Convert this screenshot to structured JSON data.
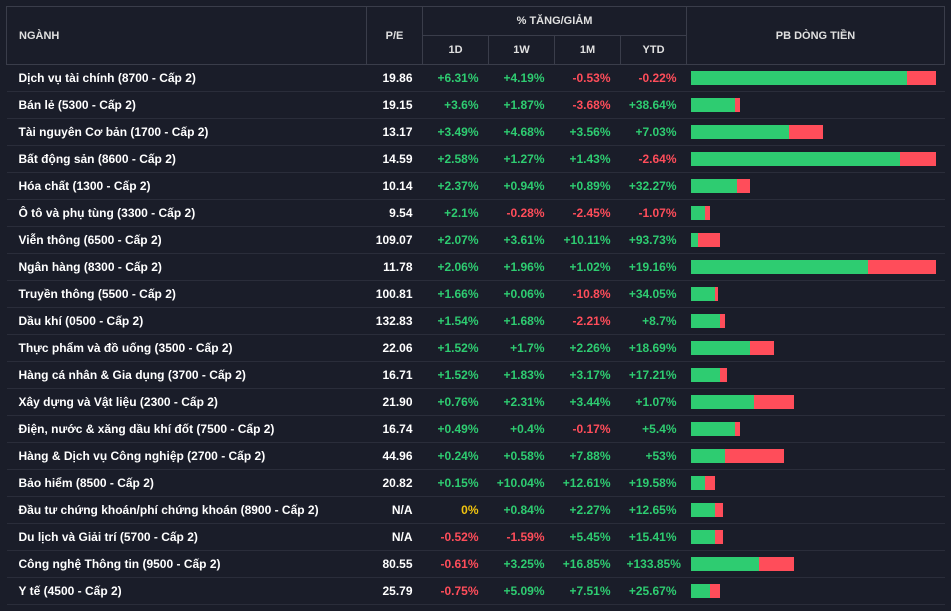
{
  "colors": {
    "positive": "#2ecc71",
    "negative": "#ff4d5a",
    "zero": "#f1c40f",
    "bar_green": "#2ecc71",
    "bar_red": "#ff4d5a",
    "background": "#1a1d29",
    "grid": "#3a3d4a",
    "row_divider": "#2a2d3a",
    "text": "#e0e0e0"
  },
  "headers": {
    "nganh": "NGÀNH",
    "pe": "P/E",
    "pct_group": "% TĂNG/GIẢM",
    "d1": "1D",
    "w1": "1W",
    "m1": "1M",
    "ytd": "YTD",
    "pb": "PB DÒNG TIỀN"
  },
  "rows": [
    {
      "name": "Dịch vụ tài chính (8700 - Cấp 2)",
      "pe": "19.86",
      "d1": "+6.31%",
      "w1": "+4.19%",
      "m1": "-0.53%",
      "ytd": "-0.22%",
      "bar_green": 88,
      "bar_red": 12
    },
    {
      "name": "Bán lẻ (5300 - Cấp 2)",
      "pe": "19.15",
      "d1": "+3.6%",
      "w1": "+1.87%",
      "m1": "-3.68%",
      "ytd": "+38.64%",
      "bar_green": 18,
      "bar_red": 2
    },
    {
      "name": "Tài nguyên Cơ bản (1700 - Cấp 2)",
      "pe": "13.17",
      "d1": "+3.49%",
      "w1": "+4.68%",
      "m1": "+3.56%",
      "ytd": "+7.03%",
      "bar_green": 40,
      "bar_red": 14
    },
    {
      "name": "Bất động sản (8600 - Cấp 2)",
      "pe": "14.59",
      "d1": "+2.58%",
      "w1": "+1.27%",
      "m1": "+1.43%",
      "ytd": "-2.64%",
      "bar_green": 85,
      "bar_red": 15
    },
    {
      "name": "Hóa chất (1300 - Cấp 2)",
      "pe": "10.14",
      "d1": "+2.37%",
      "w1": "+0.94%",
      "m1": "+0.89%",
      "ytd": "+32.27%",
      "bar_green": 19,
      "bar_red": 5
    },
    {
      "name": "Ô tô và phụ tùng (3300 - Cấp 2)",
      "pe": "9.54",
      "d1": "+2.1%",
      "w1": "-0.28%",
      "m1": "-2.45%",
      "ytd": "-1.07%",
      "bar_green": 6,
      "bar_red": 2
    },
    {
      "name": "Viễn thông (6500 - Cấp 2)",
      "pe": "109.07",
      "d1": "+2.07%",
      "w1": "+3.61%",
      "m1": "+10.11%",
      "ytd": "+93.73%",
      "bar_green": 3,
      "bar_red": 9
    },
    {
      "name": "Ngân hàng (8300 - Cấp 2)",
      "pe": "11.78",
      "d1": "+2.06%",
      "w1": "+1.96%",
      "m1": "+1.02%",
      "ytd": "+19.16%",
      "bar_green": 72,
      "bar_red": 28
    },
    {
      "name": "Truyền thông (5500 - Cấp 2)",
      "pe": "100.81",
      "d1": "+1.66%",
      "w1": "+0.06%",
      "m1": "-10.8%",
      "ytd": "+34.05%",
      "bar_green": 10,
      "bar_red": 1
    },
    {
      "name": "Dầu khí (0500 - Cấp 2)",
      "pe": "132.83",
      "d1": "+1.54%",
      "w1": "+1.68%",
      "m1": "-2.21%",
      "ytd": "+8.7%",
      "bar_green": 12,
      "bar_red": 2
    },
    {
      "name": "Thực phẩm và đồ uống (3500 - Cấp 2)",
      "pe": "22.06",
      "d1": "+1.52%",
      "w1": "+1.7%",
      "m1": "+2.26%",
      "ytd": "+18.69%",
      "bar_green": 24,
      "bar_red": 10
    },
    {
      "name": "Hàng cá nhân & Gia dụng (3700 - Cấp 2)",
      "pe": "16.71",
      "d1": "+1.52%",
      "w1": "+1.83%",
      "m1": "+3.17%",
      "ytd": "+17.21%",
      "bar_green": 12,
      "bar_red": 3
    },
    {
      "name": "Xây dựng và Vật liệu (2300 - Cấp 2)",
      "pe": "21.90",
      "d1": "+0.76%",
      "w1": "+2.31%",
      "m1": "+3.44%",
      "ytd": "+1.07%",
      "bar_green": 26,
      "bar_red": 16
    },
    {
      "name": "Điện, nước & xăng dầu khí đốt (7500 - Cấp 2)",
      "pe": "16.74",
      "d1": "+0.49%",
      "w1": "+0.4%",
      "m1": "-0.17%",
      "ytd": "+5.4%",
      "bar_green": 18,
      "bar_red": 2
    },
    {
      "name": "Hàng & Dịch vụ Công nghiệp (2700 - Cấp 2)",
      "pe": "44.96",
      "d1": "+0.24%",
      "w1": "+0.58%",
      "m1": "+7.88%",
      "ytd": "+53%",
      "bar_green": 14,
      "bar_red": 24
    },
    {
      "name": "Bảo hiểm (8500 - Cấp 2)",
      "pe": "20.82",
      "d1": "+0.15%",
      "w1": "+10.04%",
      "m1": "+12.61%",
      "ytd": "+19.58%",
      "bar_green": 6,
      "bar_red": 4
    },
    {
      "name": "Đầu tư chứng khoán/phí chứng khoán (8900 - Cấp 2)",
      "pe": "N/A",
      "d1": "0%",
      "w1": "+0.84%",
      "m1": "+2.27%",
      "ytd": "+12.65%",
      "bar_green": 10,
      "bar_red": 3
    },
    {
      "name": "Du lịch và Giải trí (5700 - Cấp 2)",
      "pe": "N/A",
      "d1": "-0.52%",
      "w1": "-1.59%",
      "m1": "+5.45%",
      "ytd": "+15.41%",
      "bar_green": 10,
      "bar_red": 3
    },
    {
      "name": "Công nghệ Thông tin (9500 - Cấp 2)",
      "pe": "80.55",
      "d1": "-0.61%",
      "w1": "+3.25%",
      "m1": "+16.85%",
      "ytd": "+133.85%",
      "bar_green": 28,
      "bar_red": 14
    },
    {
      "name": "Y tế (4500 - Cấp 2)",
      "pe": "25.79",
      "d1": "-0.75%",
      "w1": "+5.09%",
      "m1": "+7.51%",
      "ytd": "+25.67%",
      "bar_green": 8,
      "bar_red": 4
    }
  ]
}
